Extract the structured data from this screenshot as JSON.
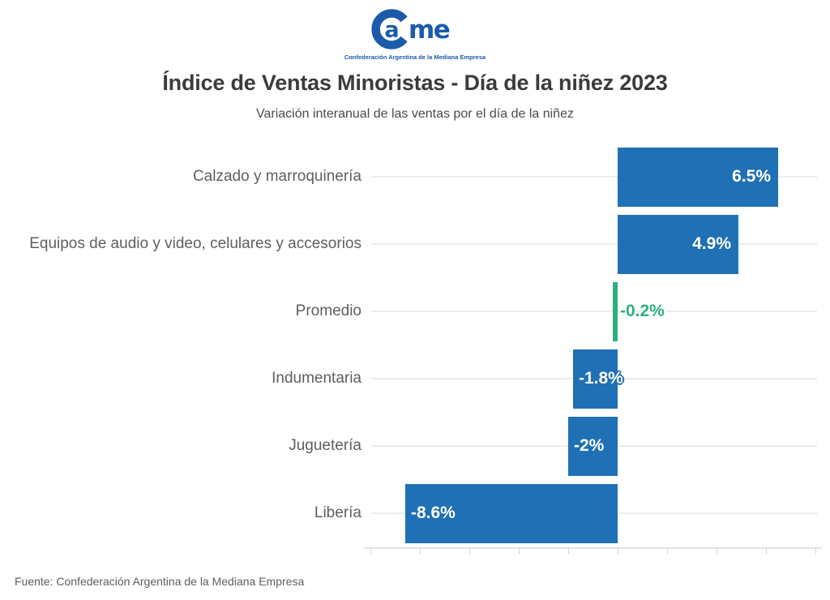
{
  "logo": {
    "brand_circle_letter": "a",
    "brand_rest": "me",
    "tagline": "Confederación Argentina de la Mediana Empresa",
    "brand_color": "#1b5ba9"
  },
  "chart_data": {
    "type": "bar",
    "orientation": "horizontal",
    "title": "Índice de Ventas Minoristas - Día de la niñez 2023",
    "subtitle": "Variación interanual de las ventas por el día de la niñez",
    "categories": [
      "Calzado y marroquinería",
      "Equipos de audio y video, celulares y accesorios",
      "Promedio",
      "Indumentaria",
      "Juguetería",
      "Libería"
    ],
    "values": [
      6.5,
      4.9,
      -0.2,
      -1.8,
      -2,
      -8.6
    ],
    "value_labels": [
      "6.5%",
      "4.9%",
      "-0.2%",
      "-1.8%",
      "-2%",
      "-8.6%"
    ],
    "highlight_index": 2,
    "xlim": [
      -10,
      8
    ],
    "tick_step": 2,
    "x_tick_labels_visible": false,
    "grid": true,
    "legend": false,
    "bar_color": "#1f70b5",
    "highlight_color": "#2eb07d",
    "grid_color": "#ececec",
    "axis_color": "#e4e4e4",
    "tick_color": "#d6d6d6",
    "category_color": "#5f5f5f",
    "title_color": "#3b3b3b",
    "subtitle_color": "#4a4a4a"
  },
  "footer": {
    "source": "Fuente: Confederación Argentina de la Mediana Empresa",
    "color": "#5d5d5d"
  }
}
